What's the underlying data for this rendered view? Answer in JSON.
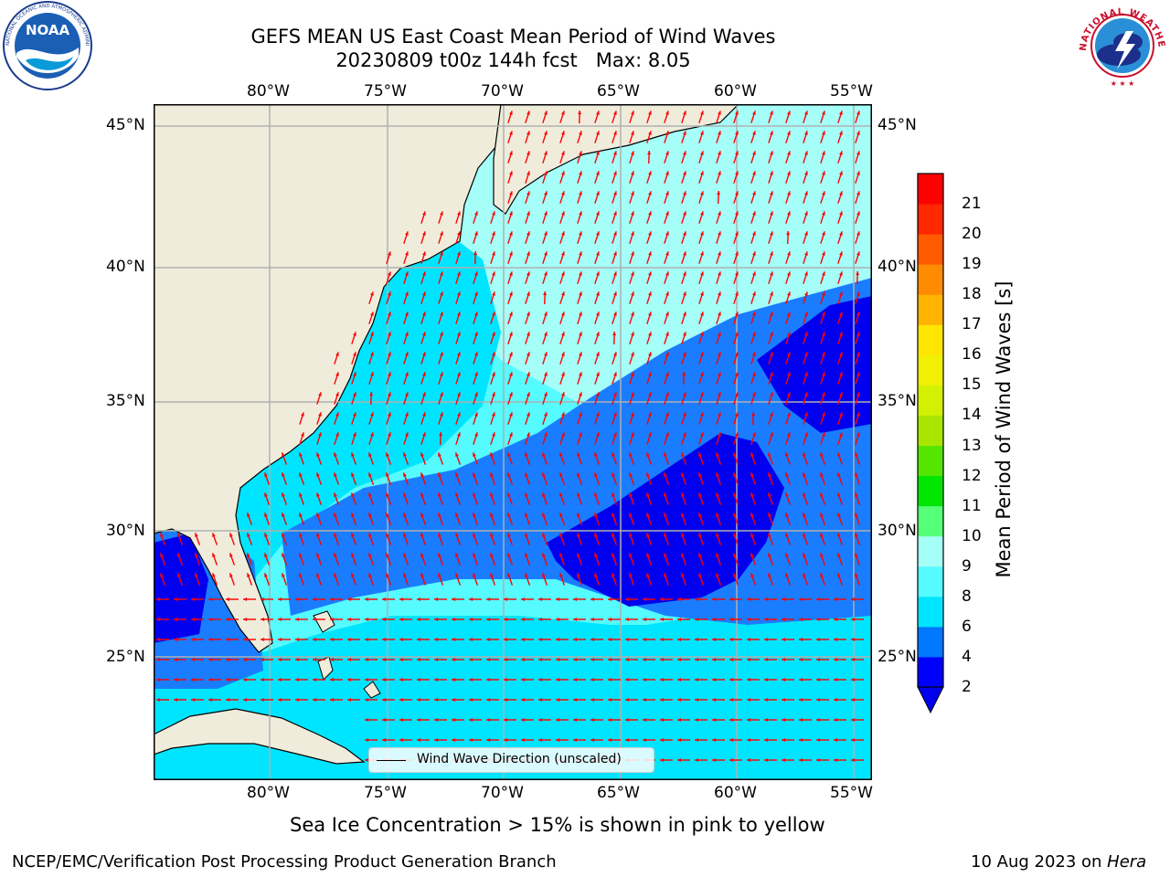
{
  "header": {
    "title_line1": "GEFS MEAN US East Coast Mean Period of Wind Waves",
    "title_line2": "20230809 t00z 144h fcst   Max: 8.05"
  },
  "logos": {
    "left": {
      "text": "NOAA",
      "ring_text": "NATIONAL OCEANIC AND ATMOSPHERIC ADMINISTRATION · U.S. DEPARTMENT OF COMMERCE"
    },
    "right": {
      "ring_text": "NATIONAL WEATHER SERVICE"
    }
  },
  "map": {
    "lon_labels": [
      "80°W",
      "75°W",
      "70°W",
      "65°W",
      "60°W",
      "55°W"
    ],
    "lat_labels": [
      "45°N",
      "40°N",
      "35°N",
      "30°N",
      "25°N"
    ],
    "legend_label": "Wind Wave Direction (unscaled)",
    "colors": {
      "land": "#efecdc",
      "grid": "#b0b0b0",
      "arrow": "#ff0000",
      "coast": "#000000"
    }
  },
  "colorbar": {
    "label": "Mean Period of Wind Waves [s]",
    "ticks": [
      "2",
      "4",
      "6",
      "8",
      "9",
      "10",
      "11",
      "12",
      "13",
      "14",
      "15",
      "16",
      "17",
      "18",
      "19",
      "20",
      "21"
    ],
    "colors": [
      "#0000ff",
      "#0077ff",
      "#00e5ff",
      "#55fbff",
      "#a5fff8",
      "#55ff77",
      "#00e600",
      "#55e600",
      "#a8e600",
      "#d2f000",
      "#f0f000",
      "#ffe600",
      "#ffb400",
      "#ff8c00",
      "#ff5a00",
      "#ff2800",
      "#ff0000"
    ],
    "extend_color": "#0000dd"
  },
  "footer": {
    "ice_note": "Sea Ice Concentration > 15% is shown in pink to yellow",
    "branch": "NCEP/EMC/Verification Post Processing Product Generation Branch",
    "date": "10 Aug 2023 on ",
    "host": "Hera"
  }
}
